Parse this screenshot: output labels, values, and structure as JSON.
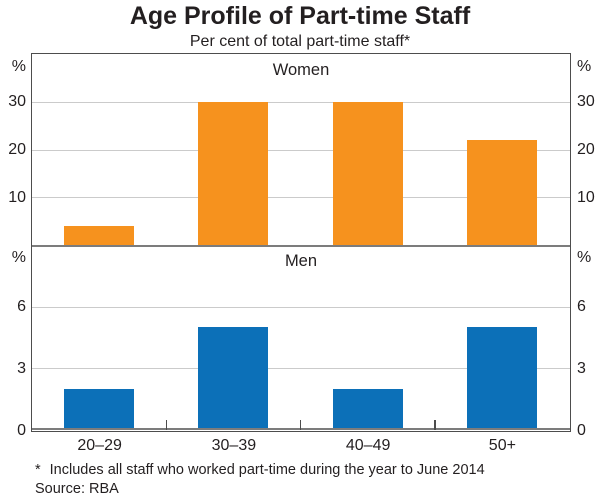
{
  "title": "Age Profile of Part-time Staff",
  "subtitle": "Per cent of total part-time staff*",
  "chart_data": {
    "type": "bar",
    "categories": [
      "20–29",
      "30–39",
      "40–49",
      "50+"
    ],
    "panels": [
      {
        "label": "Women",
        "bar_color": "#F6921E",
        "values": [
          4,
          30,
          30,
          22
        ],
        "ylim": [
          0,
          40
        ],
        "yticks": [
          10,
          20,
          30
        ],
        "unit_label": "%"
      },
      {
        "label": "Men",
        "bar_color": "#0C70B8",
        "values": [
          2,
          5,
          2,
          5
        ],
        "ylim": [
          0,
          9
        ],
        "yticks": [
          0,
          3,
          6
        ],
        "unit_label": "%"
      }
    ],
    "grid": true,
    "legend": "none",
    "axes_mirrored": true,
    "xlabel": "",
    "ylabel": "%"
  },
  "footnote": {
    "marker": "*",
    "text": "Includes all staff who worked part-time during the year to June 2014"
  },
  "source": "Source: RBA",
  "colors": {
    "women_bar": "#F6921E",
    "men_bar": "#0C70B8",
    "gridline": "#CBCBCB",
    "frame": "#4D4D4D",
    "axis_line": "#7C7C7C",
    "text": "#231F20"
  }
}
